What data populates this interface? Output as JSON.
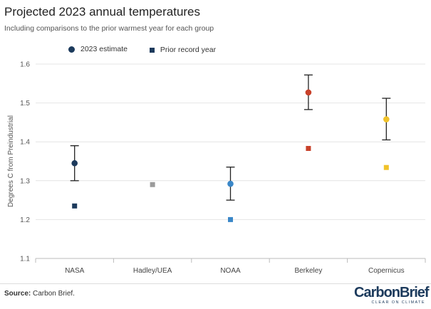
{
  "header": {
    "title": "Projected 2023 annual temperatures",
    "subtitle": "Including comparisons to the prior warmest year for each group"
  },
  "legend": {
    "estimate_label": "2023 estimate",
    "prior_label": "Prior record year"
  },
  "footer": {
    "source_prefix": "Source:",
    "source_text": "Carbon Brief.",
    "logo_word": "CarbonBrief",
    "logo_tagline": "CLEAR ON CLIMATE"
  },
  "chart_data": {
    "type": "scatter",
    "title": "Projected 2023 annual temperatures",
    "subtitle": "Including comparisons to the prior warmest year for each group",
    "ylabel": "Degrees C from Preindustrial",
    "xlabel": "",
    "ylim": [
      1.1,
      1.6
    ],
    "yticks": [
      "1.1",
      "1.2",
      "1.3",
      "1.4",
      "1.5",
      "1.6"
    ],
    "grid": "horizontal",
    "legend_position": "top-left",
    "categories": [
      "NASA",
      "Hadley/UEA",
      "NOAA",
      "Berkeley",
      "Copernicus"
    ],
    "colors": [
      "#1c3a5c",
      "#9a9a9a",
      "#3a87c8",
      "#c8412a",
      "#f0c22a"
    ],
    "series": [
      {
        "name": "2023 estimate",
        "marker": "circle",
        "values": [
          1.345,
          null,
          1.292,
          1.527,
          1.458
        ],
        "error_low": [
          1.3,
          null,
          1.25,
          1.483,
          1.405
        ],
        "error_high": [
          1.39,
          null,
          1.335,
          1.572,
          1.512
        ]
      },
      {
        "name": "Prior record year",
        "marker": "square",
        "values": [
          1.235,
          1.29,
          1.2,
          1.383,
          1.334
        ]
      }
    ]
  }
}
